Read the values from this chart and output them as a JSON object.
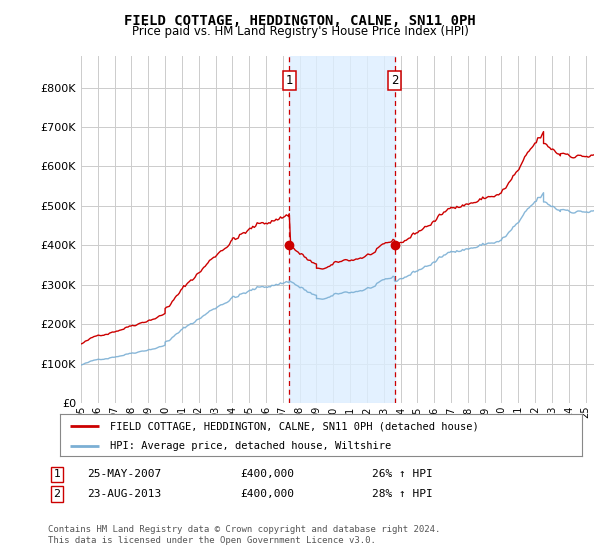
{
  "title": "FIELD COTTAGE, HEDDINGTON, CALNE, SN11 0PH",
  "subtitle": "Price paid vs. HM Land Registry's House Price Index (HPI)",
  "sale1_date": "25-MAY-2007",
  "sale1_price": 400000,
  "sale1_year": 2007.38,
  "sale2_date": "23-AUG-2013",
  "sale2_price": 400000,
  "sale2_year": 2013.64,
  "legend_red": "FIELD COTTAGE, HEDDINGTON, CALNE, SN11 0PH (detached house)",
  "legend_blue": "HPI: Average price, detached house, Wiltshire",
  "sale1_hpi_pct": "26% ↑ HPI",
  "sale2_hpi_pct": "28% ↑ HPI",
  "footer": "Contains HM Land Registry data © Crown copyright and database right 2024.\nThis data is licensed under the Open Government Licence v3.0.",
  "ylim": [
    0,
    880000
  ],
  "yticks": [
    0,
    100000,
    200000,
    300000,
    400000,
    500000,
    600000,
    700000,
    800000
  ],
  "xmin": 1995.0,
  "xmax": 2025.5,
  "background_color": "#ffffff",
  "grid_color": "#cccccc",
  "red_color": "#cc0000",
  "blue_color": "#7bafd4",
  "shade_color": "#ddeeff",
  "marker_color": "#cc0000"
}
